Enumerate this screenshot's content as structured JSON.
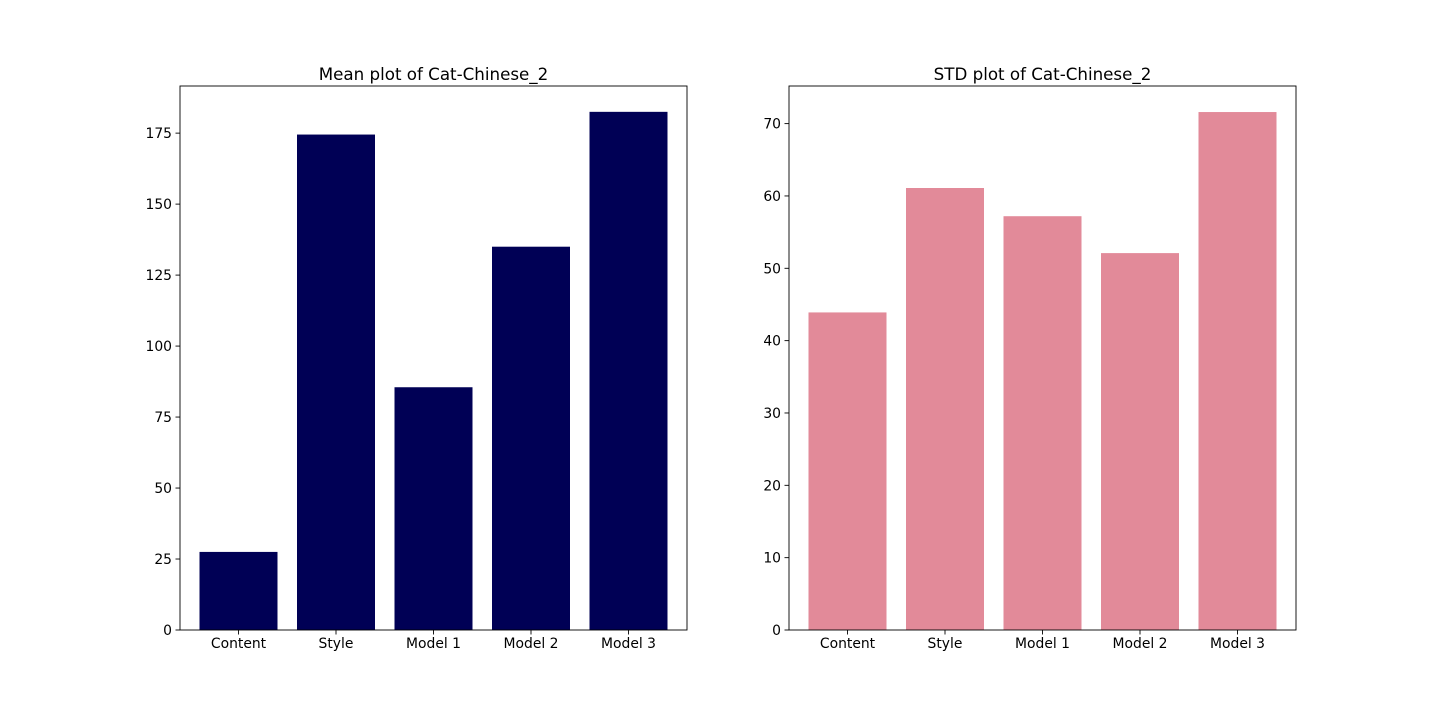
{
  "chart_data": [
    {
      "type": "bar",
      "title": "Mean plot of Cat-Chinese_2",
      "xlabel": "",
      "ylabel": "",
      "categories": [
        "Content",
        "Style",
        "Model 1",
        "Model 2",
        "Model 3"
      ],
      "values": [
        27.5,
        174.5,
        85.5,
        135.0,
        182.5
      ],
      "ylim": [
        0,
        191.6
      ],
      "yticks": [
        0,
        25,
        50,
        75,
        100,
        125,
        150,
        175
      ],
      "color": "#000055",
      "grid": false,
      "legend": "none"
    },
    {
      "type": "bar",
      "title": "STD plot of Cat-Chinese_2",
      "xlabel": "",
      "ylabel": "",
      "categories": [
        "Content",
        "Style",
        "Model 1",
        "Model 2",
        "Model 3"
      ],
      "values": [
        43.9,
        61.1,
        57.2,
        52.1,
        71.6
      ],
      "ylim": [
        0,
        75.2
      ],
      "yticks": [
        0,
        10,
        20,
        30,
        40,
        50,
        60,
        70
      ],
      "color": "#e28a99",
      "grid": false,
      "legend": "none"
    }
  ]
}
